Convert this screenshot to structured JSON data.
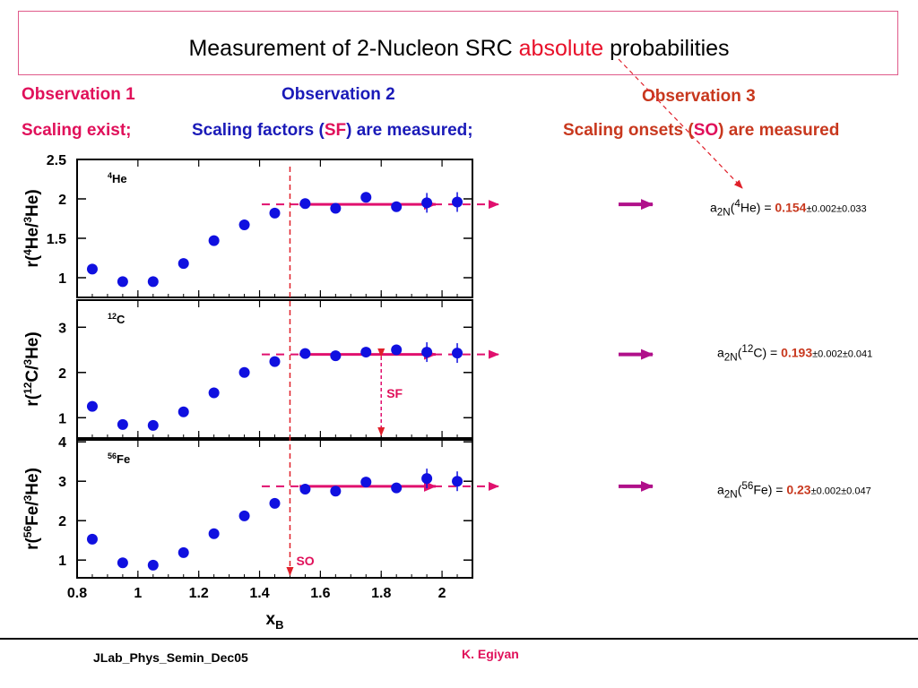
{
  "title": {
    "prefix": "Measurement of 2-Nucleon SRC ",
    "highlight": "absolute",
    "suffix": " probabilities"
  },
  "observations": [
    {
      "heading": "Observation 1",
      "text": "Scaling exist;"
    },
    {
      "heading": "Observation 2",
      "text_a": "Scaling factors (",
      "text_sf": "SF",
      "text_b": ") are measured;"
    },
    {
      "heading": "Observation 3",
      "text_a": "Scaling onsets (",
      "text_so": "SO",
      "text_b": ") are measured"
    }
  ],
  "results": [
    {
      "prefix": "a",
      "sub": "2N",
      "nucleus_mass": "4",
      "nucleus": "He",
      "value": "0.154",
      "errors": "±0.002±0.033"
    },
    {
      "prefix": "a",
      "sub": "2N",
      "nucleus_mass": "12",
      "nucleus": "C",
      "value": "0.193",
      "errors": "±0.002±0.041"
    },
    {
      "prefix": "a",
      "sub": "2N",
      "nucleus_mass": "56",
      "nucleus": "Fe",
      "value": "0.23",
      "errors": "±0.002±0.047"
    }
  ],
  "annotations": {
    "sf": "SF",
    "so": "SO"
  },
  "footer": {
    "left": "JLab_Phys_Semin_Dec05",
    "author": "K. Egiyan"
  },
  "colors": {
    "points": "#1010e0",
    "title_highlight": "#e8102a",
    "obs1": "#e0105a",
    "obs2": "#1a1ab8",
    "obs3": "#c8381e",
    "arrow": "#e0106e",
    "value": "#c8381e"
  },
  "chart_data": [
    {
      "type": "scatter",
      "panel_label_mass": "4",
      "panel_label": "He",
      "ylabel_parts": [
        "r(",
        "4",
        "He/",
        "3",
        "He)"
      ],
      "ylim": [
        0.75,
        2.5
      ],
      "yticks": [
        {
          "v": 1,
          "label": "1"
        },
        {
          "v": 1.5,
          "label": "1.5"
        },
        {
          "v": 2,
          "label": "2"
        },
        {
          "v": 2.5,
          "label": "2.5"
        }
      ],
      "xlim": [
        0.8,
        2.1
      ],
      "x": [
        0.85,
        0.95,
        1.05,
        1.15,
        1.25,
        1.35,
        1.45,
        1.55,
        1.65,
        1.75,
        1.85,
        1.95,
        2.05
      ],
      "y": [
        1.11,
        0.95,
        0.95,
        1.18,
        1.47,
        1.67,
        1.82,
        1.94,
        1.88,
        2.02,
        1.9,
        1.95,
        1.96
      ],
      "plateau": 1.93
    },
    {
      "type": "scatter",
      "panel_label_mass": "12",
      "panel_label": "C",
      "ylabel_parts": [
        "r(",
        "12",
        "C/",
        "3",
        "He)"
      ],
      "ylim": [
        0.55,
        3.6
      ],
      "yticks": [
        {
          "v": 1,
          "label": "1"
        },
        {
          "v": 2,
          "label": "2"
        },
        {
          "v": 3,
          "label": "3"
        }
      ],
      "xlim": [
        0.8,
        2.1
      ],
      "x": [
        0.85,
        0.95,
        1.05,
        1.15,
        1.25,
        1.35,
        1.45,
        1.55,
        1.65,
        1.75,
        1.85,
        1.95,
        2.05
      ],
      "y": [
        1.25,
        0.85,
        0.83,
        1.13,
        1.55,
        2.0,
        2.24,
        2.42,
        2.37,
        2.45,
        2.5,
        2.45,
        2.43
      ],
      "plateau": 2.4
    },
    {
      "type": "scatter",
      "panel_label_mass": "56",
      "panel_label": "Fe",
      "ylabel_parts": [
        "r(",
        "56",
        "Fe/",
        "3",
        "He)"
      ],
      "ylim": [
        0.55,
        4.05
      ],
      "yticks": [
        {
          "v": 1,
          "label": "1"
        },
        {
          "v": 2,
          "label": "2"
        },
        {
          "v": 3,
          "label": "3"
        },
        {
          "v": 4,
          "label": "4"
        }
      ],
      "xlim": [
        0.8,
        2.1
      ],
      "x": [
        0.85,
        0.95,
        1.05,
        1.15,
        1.25,
        1.35,
        1.45,
        1.55,
        1.65,
        1.75,
        1.85,
        1.95,
        2.05
      ],
      "y": [
        1.53,
        0.93,
        0.87,
        1.19,
        1.67,
        2.12,
        2.44,
        2.8,
        2.75,
        2.98,
        2.83,
        3.07,
        3.0
      ],
      "plateau": 2.87
    }
  ],
  "x_axis": {
    "label": "x",
    "label_sub": "B",
    "ticks": [
      {
        "v": 0.8,
        "label": "0.8"
      },
      {
        "v": 1.0,
        "label": "1"
      },
      {
        "v": 1.2,
        "label": "1.2"
      },
      {
        "v": 1.4,
        "label": "1.4"
      },
      {
        "v": 1.6,
        "label": "1.6"
      },
      {
        "v": 1.8,
        "label": "1.8"
      },
      {
        "v": 2.0,
        "label": "2"
      }
    ]
  },
  "scaling_onset_x": 1.5,
  "scaling_factor_x": 1.8
}
